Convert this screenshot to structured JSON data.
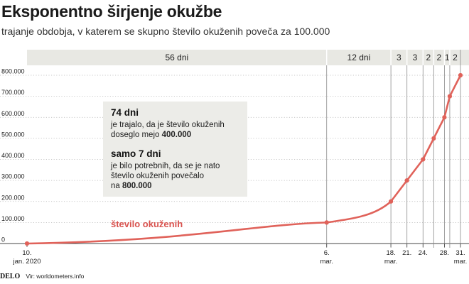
{
  "title": "Eksponentno širjenje okužbe",
  "subtitle": "trajanje obdobja, v katerem se skupno število okuženih poveča za 100.000",
  "periods": [
    "56 dni",
    "12 dni",
    "3",
    "3",
    "2",
    "2",
    "1",
    "2"
  ],
  "note": {
    "head1": "74 dni",
    "line1a": "je trajalo, da je število okuženih",
    "line1b_pre": "doseglo mejo ",
    "line1b_bold": "400.000",
    "head2": "samo 7 dni",
    "line2a": "je bilo potrebnih, da se je nato",
    "line2b": "število okuženih povečalo",
    "line2c_pre": "na ",
    "line2c_bold": "800.000"
  },
  "footer": {
    "logo": "DELO",
    "source": "Vir: worldometers.info"
  },
  "colors": {
    "line": "#e0625a",
    "band": "#e8e8e3",
    "box": "#ecece8",
    "grid": "#9a9a9a"
  },
  "chart_data": {
    "type": "line",
    "series": [
      {
        "name": "število okuženih",
        "x": [
          "2020-01-10",
          "2020-03-06",
          "2020-03-18",
          "2020-03-21",
          "2020-03-24",
          "2020-03-26",
          "2020-03-28",
          "2020-03-29",
          "2020-03-31"
        ],
        "values": [
          0,
          100000,
          200000,
          300000,
          400000,
          500000,
          600000,
          700000,
          800000
        ]
      }
    ],
    "x_ticks": [
      {
        "date": "2020-01-10",
        "day": "10.",
        "month": "jan. 2020"
      },
      {
        "date": "2020-03-06",
        "day": "6.",
        "month": "mar."
      },
      {
        "date": "2020-03-18",
        "day": "18.",
        "month": "mar."
      },
      {
        "date": "2020-03-21",
        "day": "21.",
        "month": ""
      },
      {
        "date": "2020-03-24",
        "day": "24.",
        "month": ""
      },
      {
        "date": "2020-03-28",
        "day": "28.",
        "month": ""
      },
      {
        "date": "2020-03-31",
        "day": "31.",
        "month": "mar."
      }
    ],
    "y_ticks": [
      "0",
      "100.000",
      "200.000",
      "300.000",
      "400.000",
      "500.000",
      "600.000",
      "700.000",
      "800.000"
    ],
    "ylim": [
      0,
      800000
    ],
    "xlabel": "",
    "ylabel": ""
  }
}
